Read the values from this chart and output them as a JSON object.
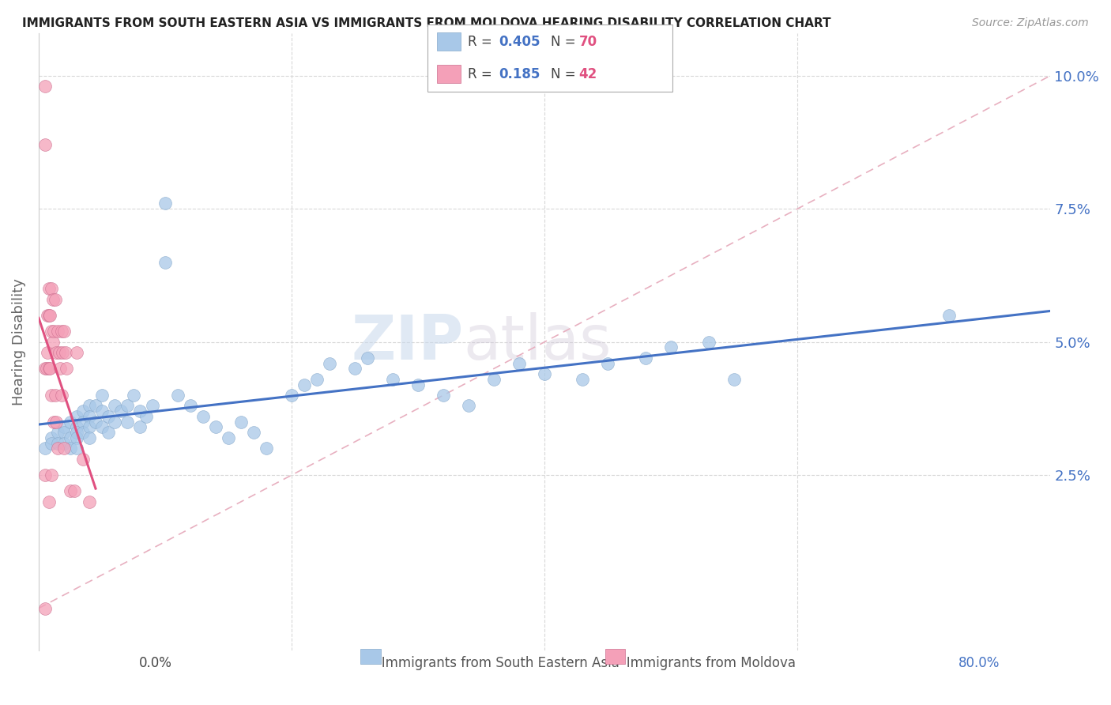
{
  "title": "IMMIGRANTS FROM SOUTH EASTERN ASIA VS IMMIGRANTS FROM MOLDOVA HEARING DISABILITY CORRELATION CHART",
  "source": "Source: ZipAtlas.com",
  "ylabel": "Hearing Disability",
  "yticks": [
    0.0,
    0.025,
    0.05,
    0.075,
    0.1
  ],
  "ytick_labels": [
    "",
    "2.5%",
    "5.0%",
    "7.5%",
    "10.0%"
  ],
  "xlim": [
    0.0,
    0.8
  ],
  "ylim": [
    -0.008,
    0.108
  ],
  "watermark_zip": "ZIP",
  "watermark_atlas": "atlas",
  "color_blue": "#a8c8e8",
  "color_pink": "#f4a0b8",
  "color_blue_line": "#4472c4",
  "color_pink_line": "#e05080",
  "color_diag_line": "#e8b0c0",
  "label1": "Immigrants from South Eastern Asia",
  "label2": "Immigrants from Moldova",
  "blue_scatter_x": [
    0.005,
    0.01,
    0.01,
    0.015,
    0.015,
    0.02,
    0.02,
    0.02,
    0.025,
    0.025,
    0.025,
    0.03,
    0.03,
    0.03,
    0.03,
    0.03,
    0.035,
    0.035,
    0.035,
    0.04,
    0.04,
    0.04,
    0.04,
    0.045,
    0.045,
    0.05,
    0.05,
    0.05,
    0.055,
    0.055,
    0.06,
    0.06,
    0.065,
    0.07,
    0.07,
    0.075,
    0.08,
    0.08,
    0.085,
    0.09,
    0.1,
    0.1,
    0.11,
    0.12,
    0.13,
    0.14,
    0.15,
    0.16,
    0.17,
    0.18,
    0.2,
    0.21,
    0.22,
    0.23,
    0.25,
    0.26,
    0.28,
    0.3,
    0.32,
    0.34,
    0.36,
    0.38,
    0.4,
    0.43,
    0.45,
    0.48,
    0.5,
    0.53,
    0.55,
    0.72
  ],
  "blue_scatter_y": [
    0.03,
    0.032,
    0.031,
    0.033,
    0.031,
    0.034,
    0.033,
    0.031,
    0.035,
    0.032,
    0.03,
    0.036,
    0.034,
    0.033,
    0.032,
    0.03,
    0.037,
    0.035,
    0.033,
    0.038,
    0.036,
    0.034,
    0.032,
    0.038,
    0.035,
    0.04,
    0.037,
    0.034,
    0.036,
    0.033,
    0.038,
    0.035,
    0.037,
    0.038,
    0.035,
    0.04,
    0.037,
    0.034,
    0.036,
    0.038,
    0.076,
    0.065,
    0.04,
    0.038,
    0.036,
    0.034,
    0.032,
    0.035,
    0.033,
    0.03,
    0.04,
    0.042,
    0.043,
    0.046,
    0.045,
    0.047,
    0.043,
    0.042,
    0.04,
    0.038,
    0.043,
    0.046,
    0.044,
    0.043,
    0.046,
    0.047,
    0.049,
    0.05,
    0.043,
    0.055
  ],
  "pink_scatter_x": [
    0.005,
    0.005,
    0.005,
    0.005,
    0.005,
    0.006,
    0.007,
    0.007,
    0.008,
    0.008,
    0.008,
    0.008,
    0.009,
    0.009,
    0.01,
    0.01,
    0.01,
    0.01,
    0.011,
    0.011,
    0.012,
    0.012,
    0.013,
    0.013,
    0.014,
    0.014,
    0.015,
    0.015,
    0.016,
    0.017,
    0.018,
    0.018,
    0.019,
    0.02,
    0.02,
    0.021,
    0.022,
    0.025,
    0.028,
    0.03,
    0.035,
    0.04
  ],
  "pink_scatter_y": [
    0.098,
    0.087,
    0.045,
    0.025,
    0.0,
    0.045,
    0.055,
    0.048,
    0.06,
    0.055,
    0.045,
    0.02,
    0.055,
    0.045,
    0.06,
    0.052,
    0.04,
    0.025,
    0.058,
    0.05,
    0.052,
    0.035,
    0.058,
    0.04,
    0.048,
    0.035,
    0.052,
    0.03,
    0.048,
    0.045,
    0.052,
    0.04,
    0.048,
    0.052,
    0.03,
    0.048,
    0.045,
    0.022,
    0.022,
    0.048,
    0.028,
    0.02
  ]
}
